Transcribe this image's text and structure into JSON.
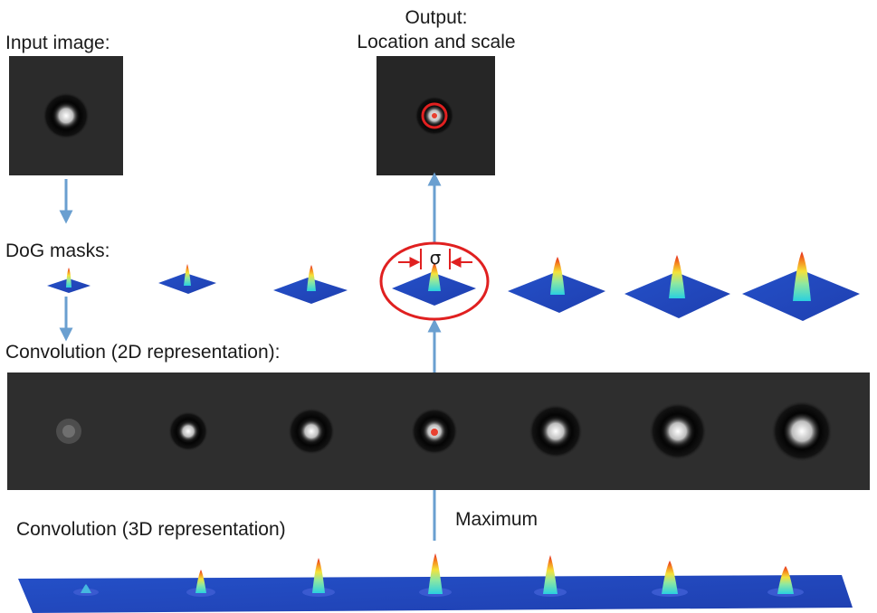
{
  "labels": {
    "input_image": "Input image:",
    "output_line1": "Output:",
    "output_line2": "Location and scale",
    "dog_masks": "DoG masks:",
    "convolution_2d": "Convolution (2D representation):",
    "convolution_3d": "Convolution (3D representation)",
    "maximum": "Maximum",
    "sigma": "σ"
  },
  "colors": {
    "arrow": "#6a9fd0",
    "highlight": "#e02020",
    "strip_background": "#2e2e2e",
    "mask_plane": "#2a4bc8"
  },
  "scales": {
    "count": 7,
    "selected_index": 3
  }
}
